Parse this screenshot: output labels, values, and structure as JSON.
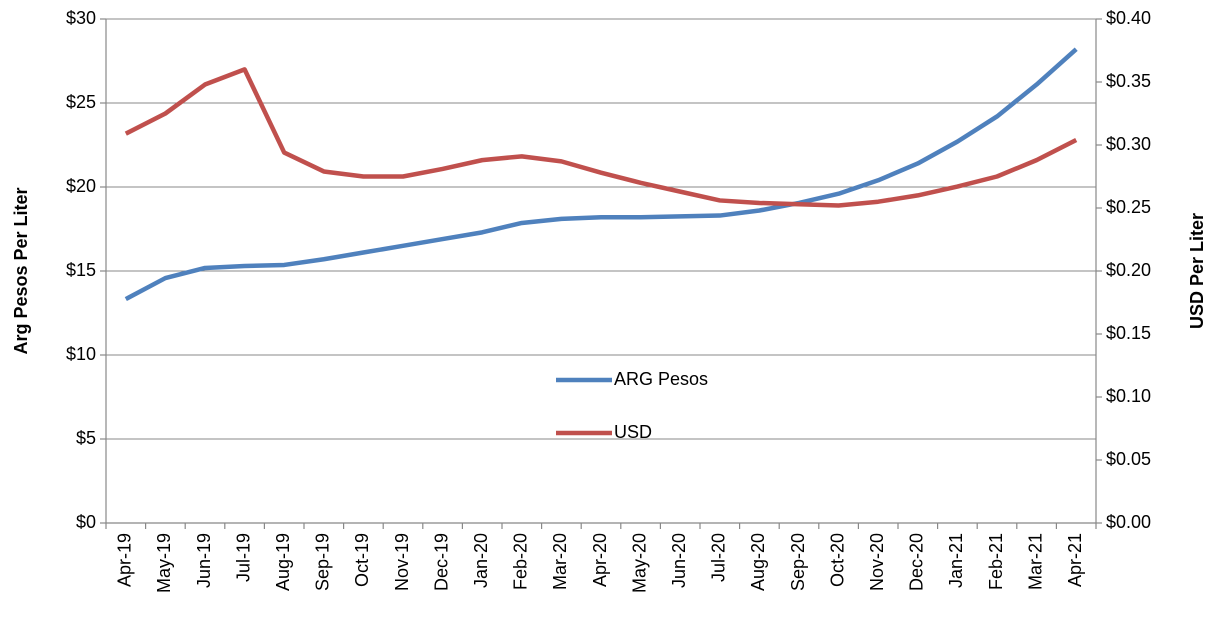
{
  "chart_data": {
    "type": "line",
    "categories": [
      "Apr-19",
      "May-19",
      "Jun-19",
      "Jul-19",
      "Aug-19",
      "Sep-19",
      "Oct-19",
      "Nov-19",
      "Dec-19",
      "Jan-20",
      "Feb-20",
      "Mar-20",
      "Apr-20",
      "May-20",
      "Jun-20",
      "Jul-20",
      "Aug-20",
      "Sep-20",
      "Oct-20",
      "Nov-20",
      "Dec-20",
      "Jan-21",
      "Feb-21",
      "Mar-21",
      "Apr-21"
    ],
    "series": [
      {
        "name": "ARG Pesos",
        "color": "#4f81bd",
        "values": [
          13.33,
          14.58,
          15.18,
          15.3,
          15.36,
          15.7,
          16.1,
          16.5,
          16.9,
          17.3,
          17.86,
          18.1,
          18.2,
          18.2,
          18.25,
          18.3,
          18.6,
          19.05,
          19.6,
          20.4,
          21.4,
          22.7,
          24.2,
          26.1,
          28.2
        ]
      },
      {
        "name": "USD",
        "color": "#c0504d",
        "axis": "y2",
        "values": [
          0.309,
          0.325,
          0.348,
          0.36,
          0.294,
          0.279,
          0.275,
          0.275,
          0.281,
          0.288,
          0.291,
          0.287,
          0.278,
          0.27,
          0.263,
          0.256,
          0.254,
          0.253,
          0.252,
          0.255,
          0.26,
          0.267,
          0.275,
          0.288,
          0.304
        ]
      }
    ],
    "ylabel": "Arg Pesos Per Liter",
    "y2label": "USD Per Liter",
    "ylim": [
      0,
      30
    ],
    "yticks": [
      {
        "value": 0,
        "label": "$0"
      },
      {
        "value": 5,
        "label": "$5"
      },
      {
        "value": 10,
        "label": "$10"
      },
      {
        "value": 15,
        "label": "$15"
      },
      {
        "value": 20,
        "label": "$20"
      },
      {
        "value": 25,
        "label": "$25"
      },
      {
        "value": 30,
        "label": "$30"
      }
    ],
    "y2lim": [
      0,
      0.4
    ],
    "y2ticks": [
      {
        "value": 0,
        "label": "$0.00"
      },
      {
        "value": 0.05,
        "label": "$0.05"
      },
      {
        "value": 0.1,
        "label": "$0.10"
      },
      {
        "value": 0.15,
        "label": "$0.15"
      },
      {
        "value": 0.2,
        "label": "$0.20"
      },
      {
        "value": 0.25,
        "label": "$0.25"
      },
      {
        "value": 0.3,
        "label": "$0.30"
      },
      {
        "value": 0.35,
        "label": "$0.35"
      },
      {
        "value": 0.4,
        "label": "$0.40"
      }
    ],
    "grid": true
  }
}
